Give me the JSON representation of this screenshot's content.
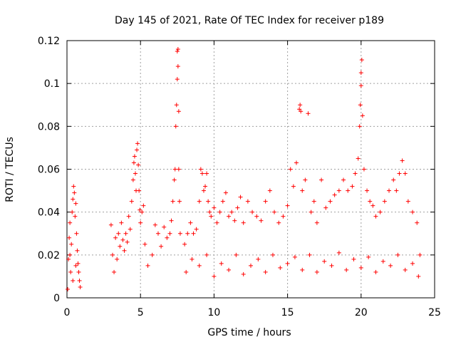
{
  "chart_data": {
    "type": "scatter",
    "title": "Day 145 of 2021, Rate Of TEC Index for receiver p189",
    "xlabel": "GPS time / hours",
    "ylabel": "ROTI / TECUs",
    "xlim": [
      0,
      25
    ],
    "ylim": [
      0,
      0.12
    ],
    "xticks": [
      0,
      5,
      10,
      15,
      20,
      25
    ],
    "yticks": [
      0,
      0.02,
      0.04,
      0.06,
      0.08,
      0.1,
      0.12
    ],
    "xtick_labels": [
      "0",
      "5",
      "10",
      "15",
      "20",
      "25"
    ],
    "ytick_labels": [
      "0",
      "0.02",
      "0.04",
      "0.06",
      "0.08",
      "0.1",
      "0.12"
    ],
    "grid": true,
    "marker": "+",
    "series_color": "#ff0000",
    "series": [
      {
        "points": [
          [
            0.05,
            0.004
          ],
          [
            0.1,
            0.018
          ],
          [
            0.15,
            0.028
          ],
          [
            0.2,
            0.035
          ],
          [
            0.25,
            0.012
          ],
          [
            0.3,
            0.025
          ],
          [
            0.35,
            0.04
          ],
          [
            0.4,
            0.046
          ],
          [
            0.45,
            0.052
          ],
          [
            0.5,
            0.049
          ],
          [
            0.55,
            0.038
          ],
          [
            0.6,
            0.044
          ],
          [
            0.65,
            0.03
          ],
          [
            0.7,
            0.022
          ],
          [
            0.75,
            0.016
          ],
          [
            0.8,
            0.012
          ],
          [
            0.85,
            0.008
          ],
          [
            0.9,
            0.005
          ],
          [
            0.2,
            0.02
          ],
          [
            0.4,
            0.008
          ],
          [
            0.6,
            0.015
          ],
          [
            3.0,
            0.034
          ],
          [
            3.1,
            0.02
          ],
          [
            3.2,
            0.012
          ],
          [
            3.3,
            0.028
          ],
          [
            3.4,
            0.018
          ],
          [
            3.5,
            0.03
          ],
          [
            3.6,
            0.024
          ],
          [
            3.7,
            0.035
          ],
          [
            3.8,
            0.027
          ],
          [
            3.9,
            0.022
          ],
          [
            4.0,
            0.03
          ],
          [
            4.1,
            0.026
          ],
          [
            4.2,
            0.038
          ],
          [
            4.3,
            0.032
          ],
          [
            4.4,
            0.045
          ],
          [
            4.5,
            0.055
          ],
          [
            4.55,
            0.063
          ],
          [
            4.6,
            0.066
          ],
          [
            4.65,
            0.058
          ],
          [
            4.7,
            0.05
          ],
          [
            4.75,
            0.069
          ],
          [
            4.8,
            0.072
          ],
          [
            4.85,
            0.062
          ],
          [
            4.9,
            0.05
          ],
          [
            4.95,
            0.041
          ],
          [
            5.0,
            0.035
          ],
          [
            5.1,
            0.04
          ],
          [
            5.2,
            0.043
          ],
          [
            5.3,
            0.025
          ],
          [
            5.5,
            0.015
          ],
          [
            5.8,
            0.02
          ],
          [
            6.0,
            0.034
          ],
          [
            6.2,
            0.03
          ],
          [
            6.4,
            0.024
          ],
          [
            6.6,
            0.033
          ],
          [
            6.8,
            0.028
          ],
          [
            7.0,
            0.03
          ],
          [
            7.1,
            0.036
          ],
          [
            7.2,
            0.045
          ],
          [
            7.3,
            0.055
          ],
          [
            7.35,
            0.06
          ],
          [
            7.4,
            0.08
          ],
          [
            7.45,
            0.09
          ],
          [
            7.5,
            0.102
          ],
          [
            7.5,
            0.115
          ],
          [
            7.55,
            0.116
          ],
          [
            7.55,
            0.108
          ],
          [
            7.6,
            0.087
          ],
          [
            7.6,
            0.06
          ],
          [
            7.65,
            0.045
          ],
          [
            7.7,
            0.03
          ],
          [
            8.0,
            0.025
          ],
          [
            8.2,
            0.03
          ],
          [
            8.4,
            0.035
          ],
          [
            8.6,
            0.03
          ],
          [
            8.8,
            0.032
          ],
          [
            9.0,
            0.045
          ],
          [
            9.1,
            0.06
          ],
          [
            9.2,
            0.058
          ],
          [
            9.3,
            0.05
          ],
          [
            9.4,
            0.052
          ],
          [
            9.5,
            0.058
          ],
          [
            9.6,
            0.045
          ],
          [
            9.7,
            0.04
          ],
          [
            9.8,
            0.038
          ],
          [
            10.0,
            0.042
          ],
          [
            10.2,
            0.035
          ],
          [
            10.4,
            0.04
          ],
          [
            10.6,
            0.045
          ],
          [
            10.8,
            0.049
          ],
          [
            11.0,
            0.038
          ],
          [
            11.2,
            0.04
          ],
          [
            11.4,
            0.036
          ],
          [
            11.6,
            0.042
          ],
          [
            11.8,
            0.047
          ],
          [
            12.0,
            0.035
          ],
          [
            12.3,
            0.045
          ],
          [
            12.6,
            0.04
          ],
          [
            12.9,
            0.038
          ],
          [
            13.2,
            0.036
          ],
          [
            13.5,
            0.045
          ],
          [
            13.8,
            0.05
          ],
          [
            14.1,
            0.04
          ],
          [
            14.4,
            0.035
          ],
          [
            14.7,
            0.038
          ],
          [
            15.0,
            0.043
          ],
          [
            15.2,
            0.06
          ],
          [
            15.4,
            0.052
          ],
          [
            15.6,
            0.063
          ],
          [
            15.8,
            0.088
          ],
          [
            15.85,
            0.09
          ],
          [
            15.9,
            0.087
          ],
          [
            16.0,
            0.05
          ],
          [
            16.2,
            0.055
          ],
          [
            16.4,
            0.086
          ],
          [
            16.6,
            0.04
          ],
          [
            16.8,
            0.045
          ],
          [
            17.0,
            0.035
          ],
          [
            17.3,
            0.055
          ],
          [
            17.6,
            0.042
          ],
          [
            17.9,
            0.045
          ],
          [
            18.2,
            0.048
          ],
          [
            18.5,
            0.05
          ],
          [
            18.8,
            0.055
          ],
          [
            19.1,
            0.05
          ],
          [
            19.4,
            0.052
          ],
          [
            19.6,
            0.058
          ],
          [
            19.8,
            0.065
          ],
          [
            19.9,
            0.08
          ],
          [
            19.95,
            0.09
          ],
          [
            20.0,
            0.099
          ],
          [
            20.0,
            0.105
          ],
          [
            20.05,
            0.111
          ],
          [
            20.1,
            0.085
          ],
          [
            20.2,
            0.06
          ],
          [
            20.4,
            0.05
          ],
          [
            20.6,
            0.045
          ],
          [
            20.8,
            0.043
          ],
          [
            21.0,
            0.038
          ],
          [
            21.3,
            0.04
          ],
          [
            21.6,
            0.045
          ],
          [
            21.9,
            0.05
          ],
          [
            22.2,
            0.055
          ],
          [
            22.4,
            0.05
          ],
          [
            22.6,
            0.058
          ],
          [
            22.8,
            0.064
          ],
          [
            23.0,
            0.058
          ],
          [
            23.2,
            0.045
          ],
          [
            23.5,
            0.04
          ],
          [
            23.8,
            0.035
          ],
          [
            24.0,
            0.02
          ],
          [
            8.1,
            0.012
          ],
          [
            8.5,
            0.018
          ],
          [
            9.0,
            0.015
          ],
          [
            9.5,
            0.02
          ],
          [
            10.0,
            0.01
          ],
          [
            10.5,
            0.016
          ],
          [
            11.0,
            0.013
          ],
          [
            11.5,
            0.02
          ],
          [
            12.0,
            0.011
          ],
          [
            12.5,
            0.015
          ],
          [
            13.0,
            0.018
          ],
          [
            13.5,
            0.012
          ],
          [
            14.0,
            0.02
          ],
          [
            14.5,
            0.014
          ],
          [
            15.0,
            0.016
          ],
          [
            15.5,
            0.019
          ],
          [
            16.0,
            0.013
          ],
          [
            16.5,
            0.02
          ],
          [
            17.0,
            0.012
          ],
          [
            17.5,
            0.017
          ],
          [
            18.0,
            0.015
          ],
          [
            18.5,
            0.021
          ],
          [
            19.0,
            0.013
          ],
          [
            19.5,
            0.018
          ],
          [
            20.0,
            0.014
          ],
          [
            20.5,
            0.019
          ],
          [
            21.0,
            0.012
          ],
          [
            21.5,
            0.017
          ],
          [
            22.0,
            0.015
          ],
          [
            22.5,
            0.02
          ],
          [
            23.0,
            0.013
          ],
          [
            23.5,
            0.016
          ],
          [
            23.9,
            0.01
          ]
        ]
      }
    ]
  }
}
